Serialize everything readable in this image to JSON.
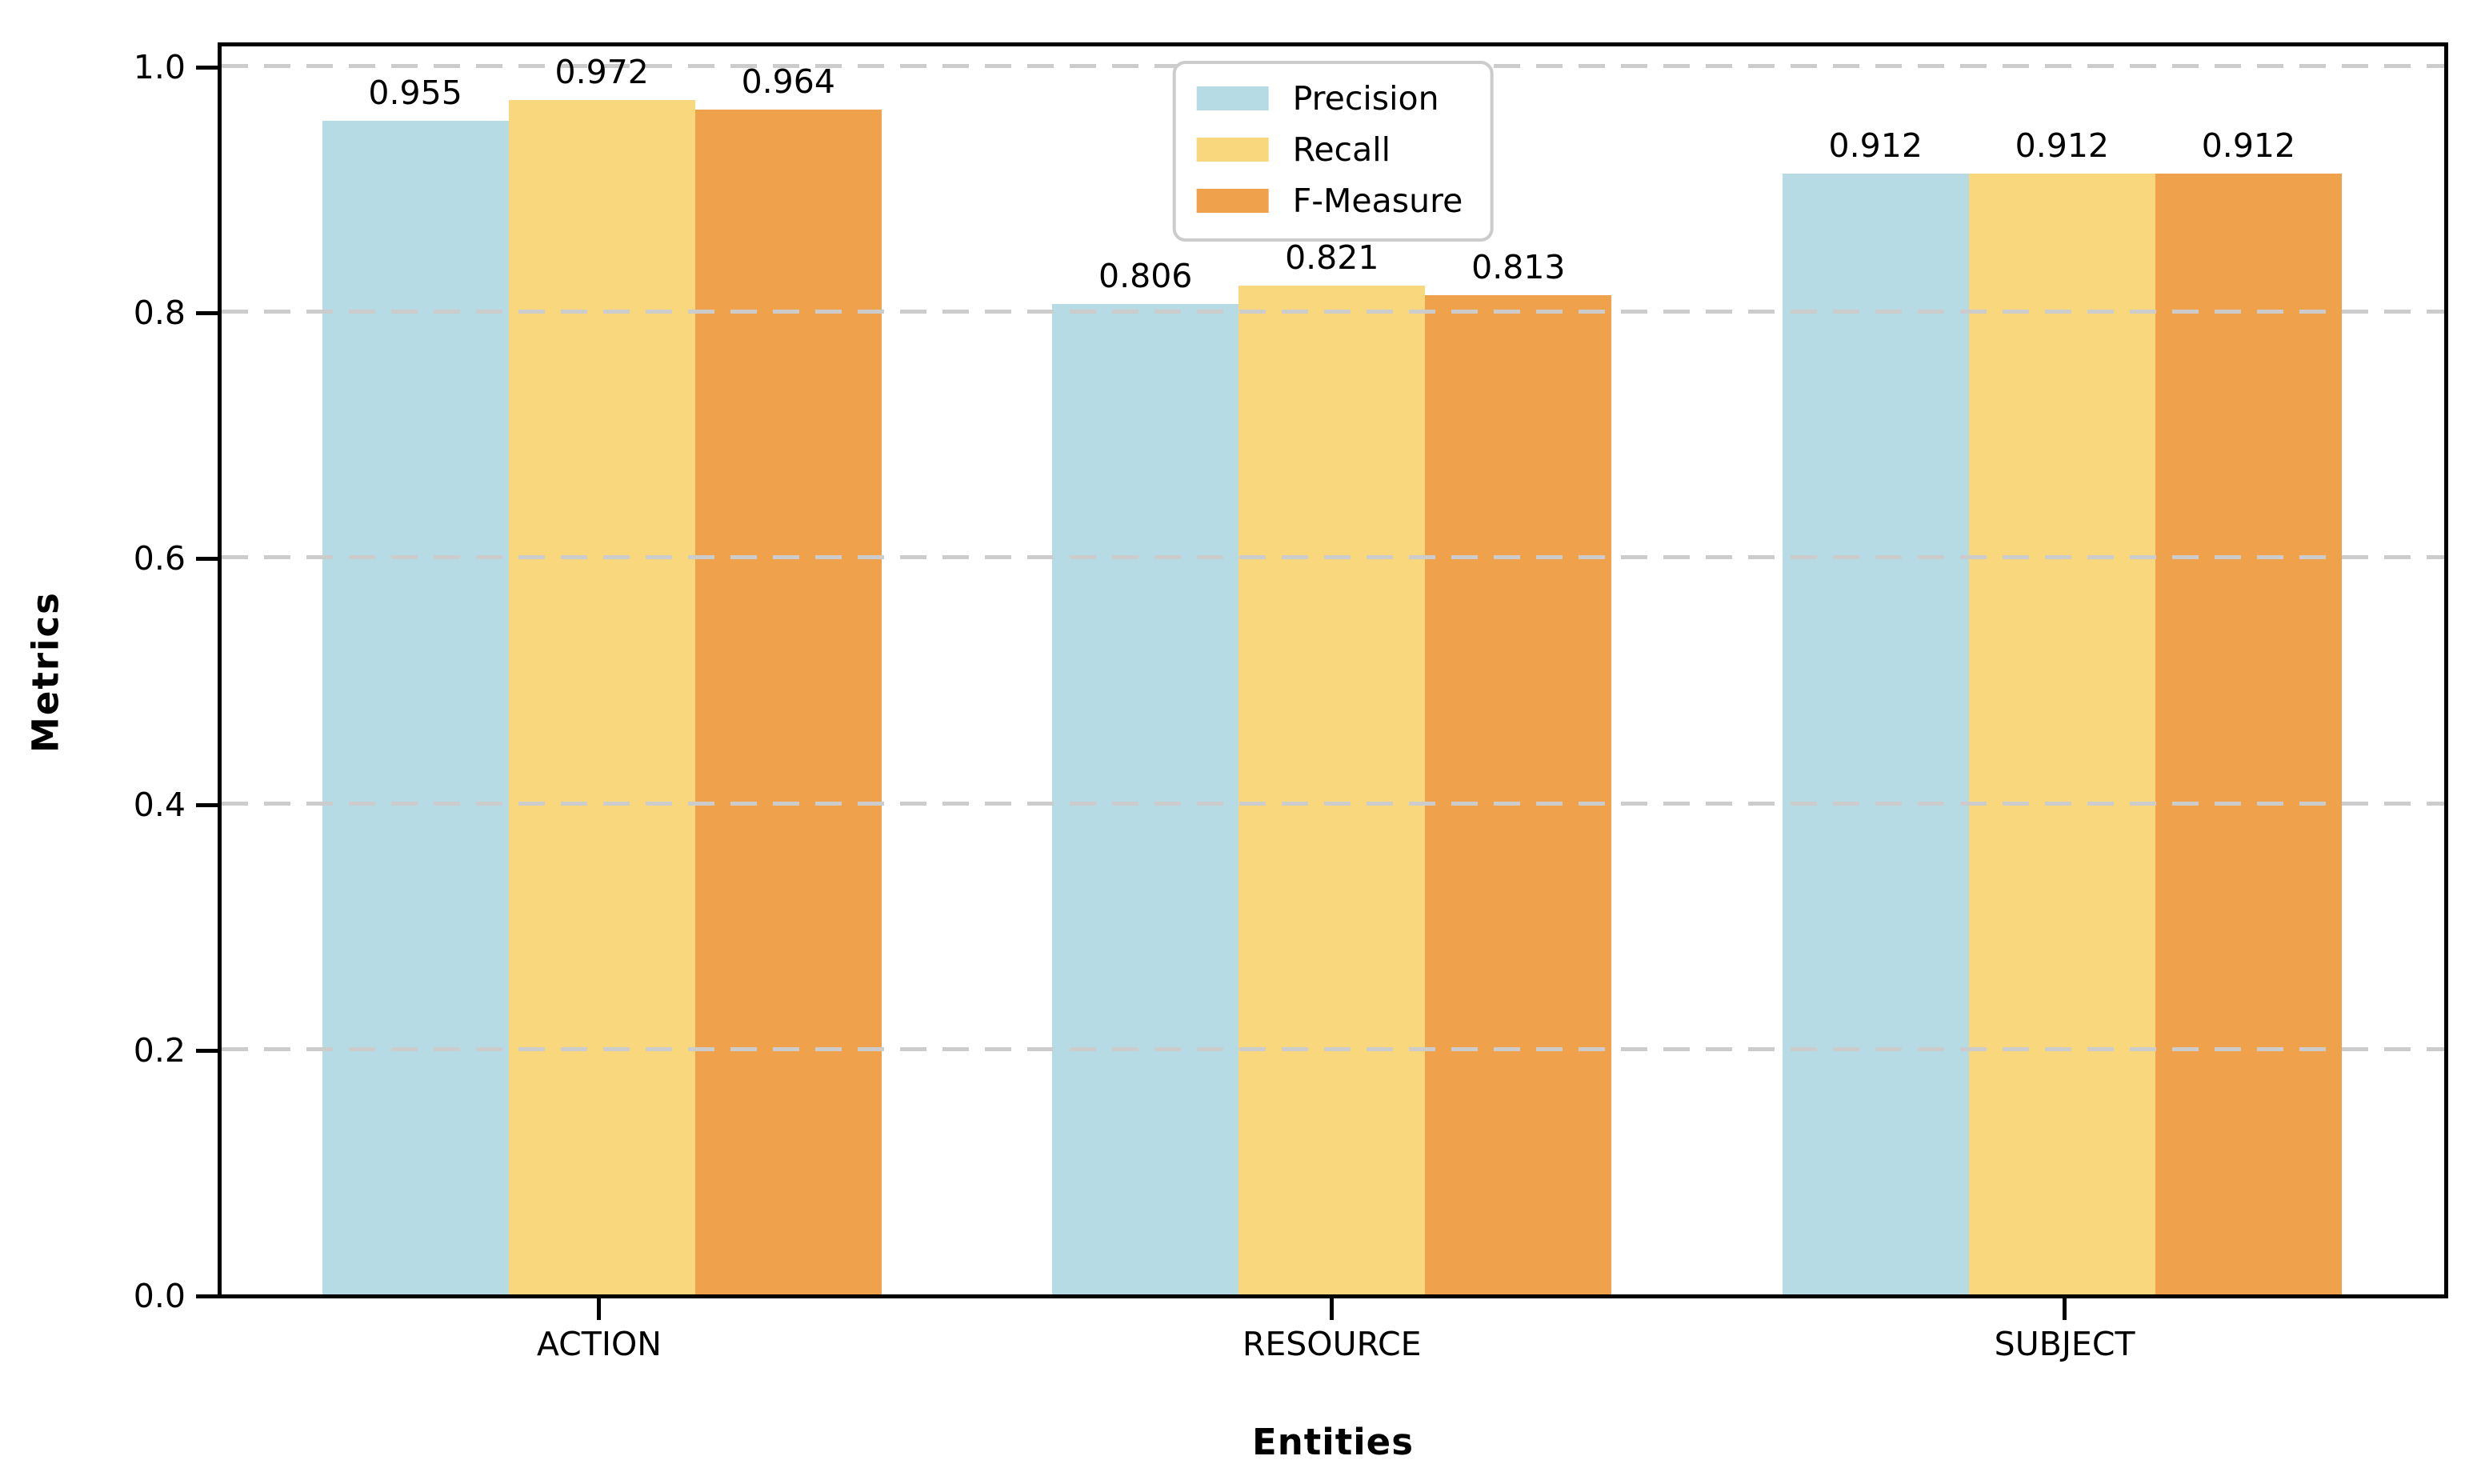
{
  "chart_data": {
    "type": "bar",
    "title": "",
    "xlabel": "Entities",
    "ylabel": "Metrics",
    "categories": [
      "ACTION",
      "RESOURCE",
      "SUBJECT"
    ],
    "series": [
      {
        "name": "Precision",
        "color": "#b7dbe4",
        "values": [
          0.955,
          0.806,
          0.912
        ]
      },
      {
        "name": "Recall",
        "color": "#f9d77d",
        "values": [
          0.972,
          0.821,
          0.912
        ]
      },
      {
        "name": "F-Measure",
        "color": "#f0a14c",
        "values": [
          0.964,
          0.813,
          0.912
        ]
      }
    ],
    "ylim": [
      0.0,
      1.0
    ],
    "yticks": [
      "0.0",
      "0.2",
      "0.4",
      "0.6",
      "0.8",
      "1.0"
    ],
    "grid": {
      "axis": "y",
      "style": "dashed",
      "color": "#cccccc",
      "above_bars": true
    },
    "legend": {
      "position": "upper center",
      "entries": [
        "Precision",
        "Recall",
        "F-Measure"
      ]
    },
    "bar_value_labels": true,
    "value_label_decimals": 3,
    "spine_color": "#000000",
    "text_color": "#000000"
  }
}
